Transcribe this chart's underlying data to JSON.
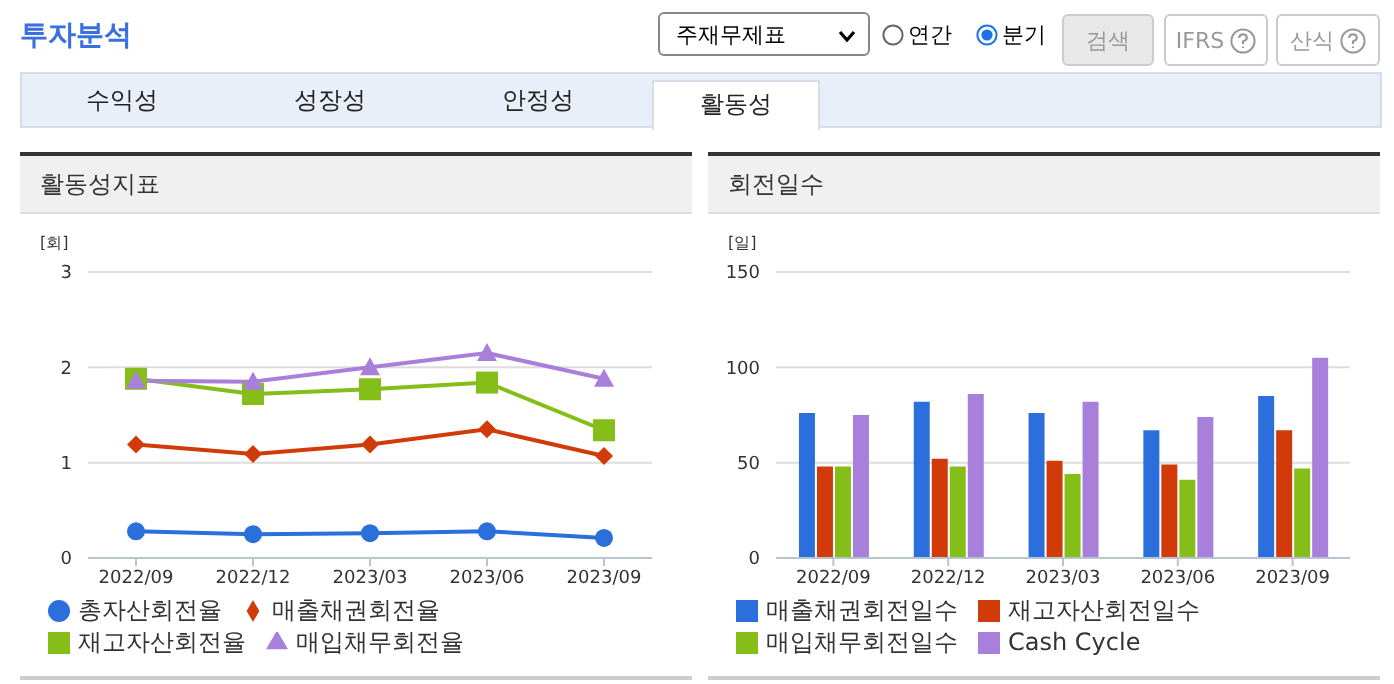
{
  "chart_data": [
    {
      "type": "line",
      "title": "활동성지표",
      "ylabel": "[회]",
      "categories": [
        "2022/09",
        "2022/12",
        "2023/03",
        "2023/06",
        "2023/09"
      ],
      "series": [
        {
          "name": "총자산회전율",
          "color": "#2a6fdb",
          "marker": "circle",
          "values": [
            0.28,
            0.25,
            0.26,
            0.28,
            0.21
          ]
        },
        {
          "name": "매출채권회전율",
          "color": "#d13b0a",
          "marker": "diamond",
          "values": [
            1.19,
            1.09,
            1.19,
            1.35,
            1.07
          ]
        },
        {
          "name": "재고자산회전율",
          "color": "#85be19",
          "marker": "square",
          "values": [
            1.88,
            1.72,
            1.77,
            1.84,
            1.34
          ]
        },
        {
          "name": "매입채무회전율",
          "color": "#a97fdc",
          "marker": "triangle",
          "values": [
            1.86,
            1.85,
            2.0,
            2.15,
            1.88
          ]
        }
      ],
      "ylim": [
        0,
        3
      ],
      "yticks": [
        0,
        1,
        2,
        3
      ],
      "grid": "y",
      "legend": "bottom",
      "annotations": [
        "투자분석",
        "주재무제표",
        "연간",
        "분기",
        "검색",
        "IFRS",
        "산식",
        "수익성",
        "성장성",
        "안정성",
        "활동성"
      ]
    },
    {
      "type": "bar",
      "title": "회전일수",
      "ylabel": "[일]",
      "categories": [
        "2022/09",
        "2022/12",
        "2023/03",
        "2023/06",
        "2023/09"
      ],
      "series": [
        {
          "name": "매출채권회전일수",
          "color": "#2a6fdb",
          "values": [
            76,
            82,
            76,
            67,
            85
          ]
        },
        {
          "name": "재고자산회전일수",
          "color": "#d13b0a",
          "values": [
            48,
            52,
            51,
            49,
            67
          ]
        },
        {
          "name": "매입채무회전일수",
          "color": "#85be19",
          "values": [
            48,
            48,
            44,
            41,
            47
          ]
        },
        {
          "name": "Cash Cycle",
          "color": "#a97fdc",
          "values": [
            75,
            86,
            82,
            74,
            105
          ]
        }
      ],
      "ylim": [
        0,
        150
      ],
      "yticks": [
        0,
        50,
        100,
        150
      ],
      "grid": "y",
      "legend": "bottom"
    }
  ]
}
